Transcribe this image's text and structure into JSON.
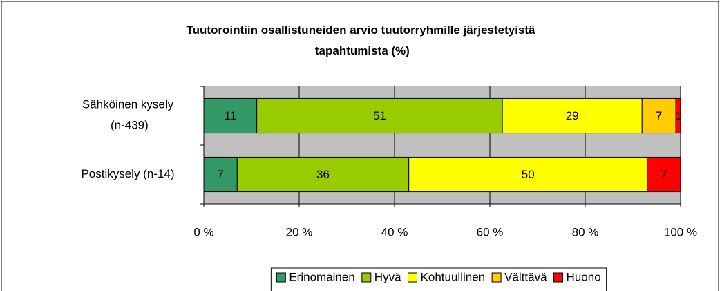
{
  "chart_data": {
    "type": "bar",
    "orientation": "horizontal",
    "stacking": "percent",
    "title": "Tuutorointiin osallistuneiden arvio tuutorryhmille järjestetyistä tapahtumista (%)",
    "categories": [
      "Sähköinen kysely (n-439)",
      "Postikysely (n-14)"
    ],
    "series": [
      {
        "name": "Erinomainen",
        "color": "#339966",
        "values": [
          11,
          7
        ]
      },
      {
        "name": "Hyvä",
        "color": "#99cc00",
        "values": [
          51,
          36
        ]
      },
      {
        "name": "Kohtuullinen",
        "color": "#ffff00",
        "values": [
          29,
          50
        ]
      },
      {
        "name": "Välttävä",
        "color": "#ffcc00",
        "values": [
          7,
          0
        ]
      },
      {
        "name": "Huono",
        "color": "#ff0000",
        "values": [
          1,
          7
        ]
      }
    ],
    "xlim": [
      0,
      100
    ],
    "xticks": [
      {
        "value": 0,
        "label": "0 %"
      },
      {
        "value": 20,
        "label": "20 %"
      },
      {
        "value": 40,
        "label": "40 %"
      },
      {
        "value": 60,
        "label": "60 %"
      },
      {
        "value": 80,
        "label": "80 %"
      },
      {
        "value": 100,
        "label": "100 %"
      }
    ],
    "grid": true,
    "legend": "bottom"
  }
}
